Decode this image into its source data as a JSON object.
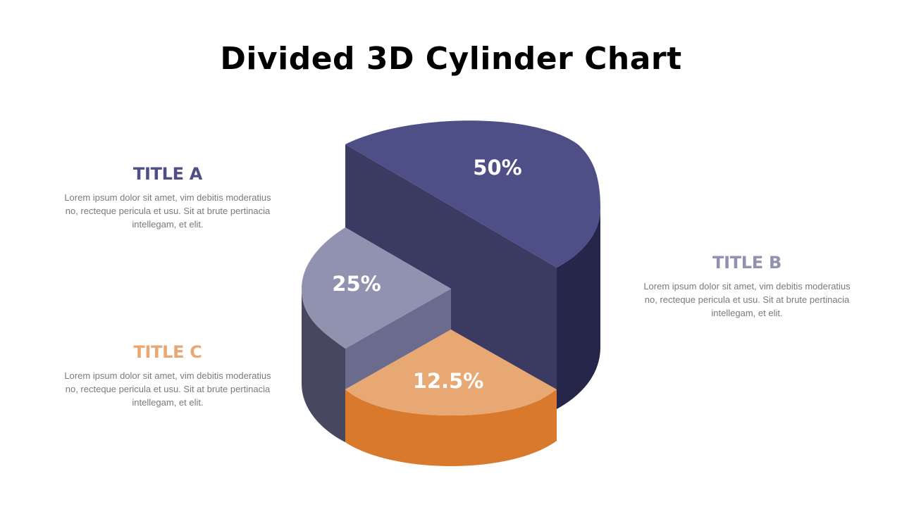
{
  "title": "Divided 3D Cylinder Chart",
  "blocks": {
    "a": {
      "heading": "TITLE A",
      "body": "Lorem ipsum dolor sit amet, vim debitis moderatius no, recteque pericula et usu. Sit at brute pertinacia intellegam, et elit.",
      "color": "#4e4f86"
    },
    "b": {
      "heading": "TITLE B",
      "body": "Lorem ipsum dolor sit amet, vim debitis moderatius no, recteque pericula et usu. Sit at brute pertinacia intellegam, et elit.",
      "color": "#9192b0"
    },
    "c": {
      "heading": "TITLE C",
      "body": "Lorem ipsum dolor sit amet, vim debitis moderatius no, recteque pericula et usu. Sit at brute pertinacia intellegam, et elit.",
      "color": "#e8a874"
    }
  },
  "chart_data": {
    "type": "pie",
    "style": "3d-cylinder-exploded",
    "title": "Divided 3D Cylinder Chart",
    "slices": [
      {
        "label": "50%",
        "value": 50,
        "series": "TITLE B",
        "top_color": "#4e4f86",
        "side_color": "#3a3a62",
        "rim_color": "#26264a"
      },
      {
        "label": "25%",
        "value": 25,
        "series": "TITLE A",
        "top_color": "#9192b0",
        "side_color": "#6b6b8e",
        "rim_color": "#474760"
      },
      {
        "label": "12.5%",
        "value": 12.5,
        "series": "TITLE C",
        "top_color": "#e8a874",
        "side_color": "#d9792c",
        "rim_color": "#d9792c"
      }
    ]
  }
}
